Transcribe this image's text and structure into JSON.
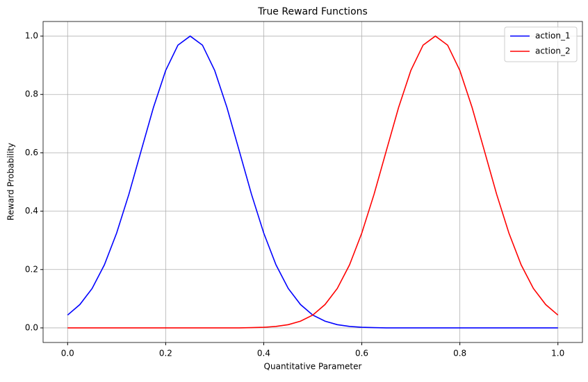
{
  "chart_data": {
    "type": "line",
    "title": "True Reward Functions",
    "x_label": "Quantitative Parameter",
    "y_label": "Reward Probability",
    "x": [
      0,
      0.025,
      0.05,
      0.075,
      0.1,
      0.125,
      0.15,
      0.175,
      0.2,
      0.225,
      0.25,
      0.275,
      0.3,
      0.325,
      0.35,
      0.375,
      0.4,
      0.425,
      0.45,
      0.475,
      0.5,
      0.525,
      0.55,
      0.575,
      0.6,
      0.625,
      0.65,
      0.675,
      0.7,
      0.725,
      0.75,
      0.775,
      0.8,
      0.825,
      0.85,
      0.875,
      0.9,
      0.925,
      0.95,
      0.975,
      1
    ],
    "series": [
      {
        "name": "action_1",
        "color": "#0000ff",
        "values": [
          0.044,
          0.08,
          0.135,
          0.216,
          0.325,
          0.458,
          0.607,
          0.755,
          0.882,
          0.969,
          1,
          0.969,
          0.882,
          0.755,
          0.607,
          0.458,
          0.325,
          0.216,
          0.135,
          0.08,
          0.044,
          0.023,
          0.011,
          0.005,
          0.002,
          0.001,
          0,
          0,
          0,
          0,
          0,
          0,
          0,
          0,
          0,
          0,
          0,
          0,
          0,
          0,
          0
        ]
      },
      {
        "name": "action_2",
        "color": "#ff0000",
        "values": [
          0,
          0,
          0,
          0,
          0,
          0,
          0,
          0,
          0,
          0,
          0,
          0,
          0,
          0,
          0,
          0.001,
          0.002,
          0.005,
          0.011,
          0.023,
          0.044,
          0.08,
          0.135,
          0.216,
          0.325,
          0.458,
          0.607,
          0.755,
          0.882,
          0.969,
          1,
          0.969,
          0.882,
          0.755,
          0.607,
          0.458,
          0.325,
          0.216,
          0.135,
          0.08,
          0.044
        ]
      }
    ],
    "xlim": [
      -0.05,
      1.05
    ],
    "ylim": [
      -0.05,
      1.05
    ],
    "xticks": [
      {
        "value": 0,
        "label": "0.0"
      },
      0.2,
      0.4,
      0.6,
      0.8,
      {
        "value": 1,
        "label": "1.0"
      }
    ],
    "yticks": [
      {
        "value": 0,
        "label": "0.0"
      },
      0.2,
      0.4,
      0.6,
      0.8,
      {
        "value": 1,
        "label": "1.0"
      }
    ],
    "grid": true,
    "legend": "upper-right"
  }
}
